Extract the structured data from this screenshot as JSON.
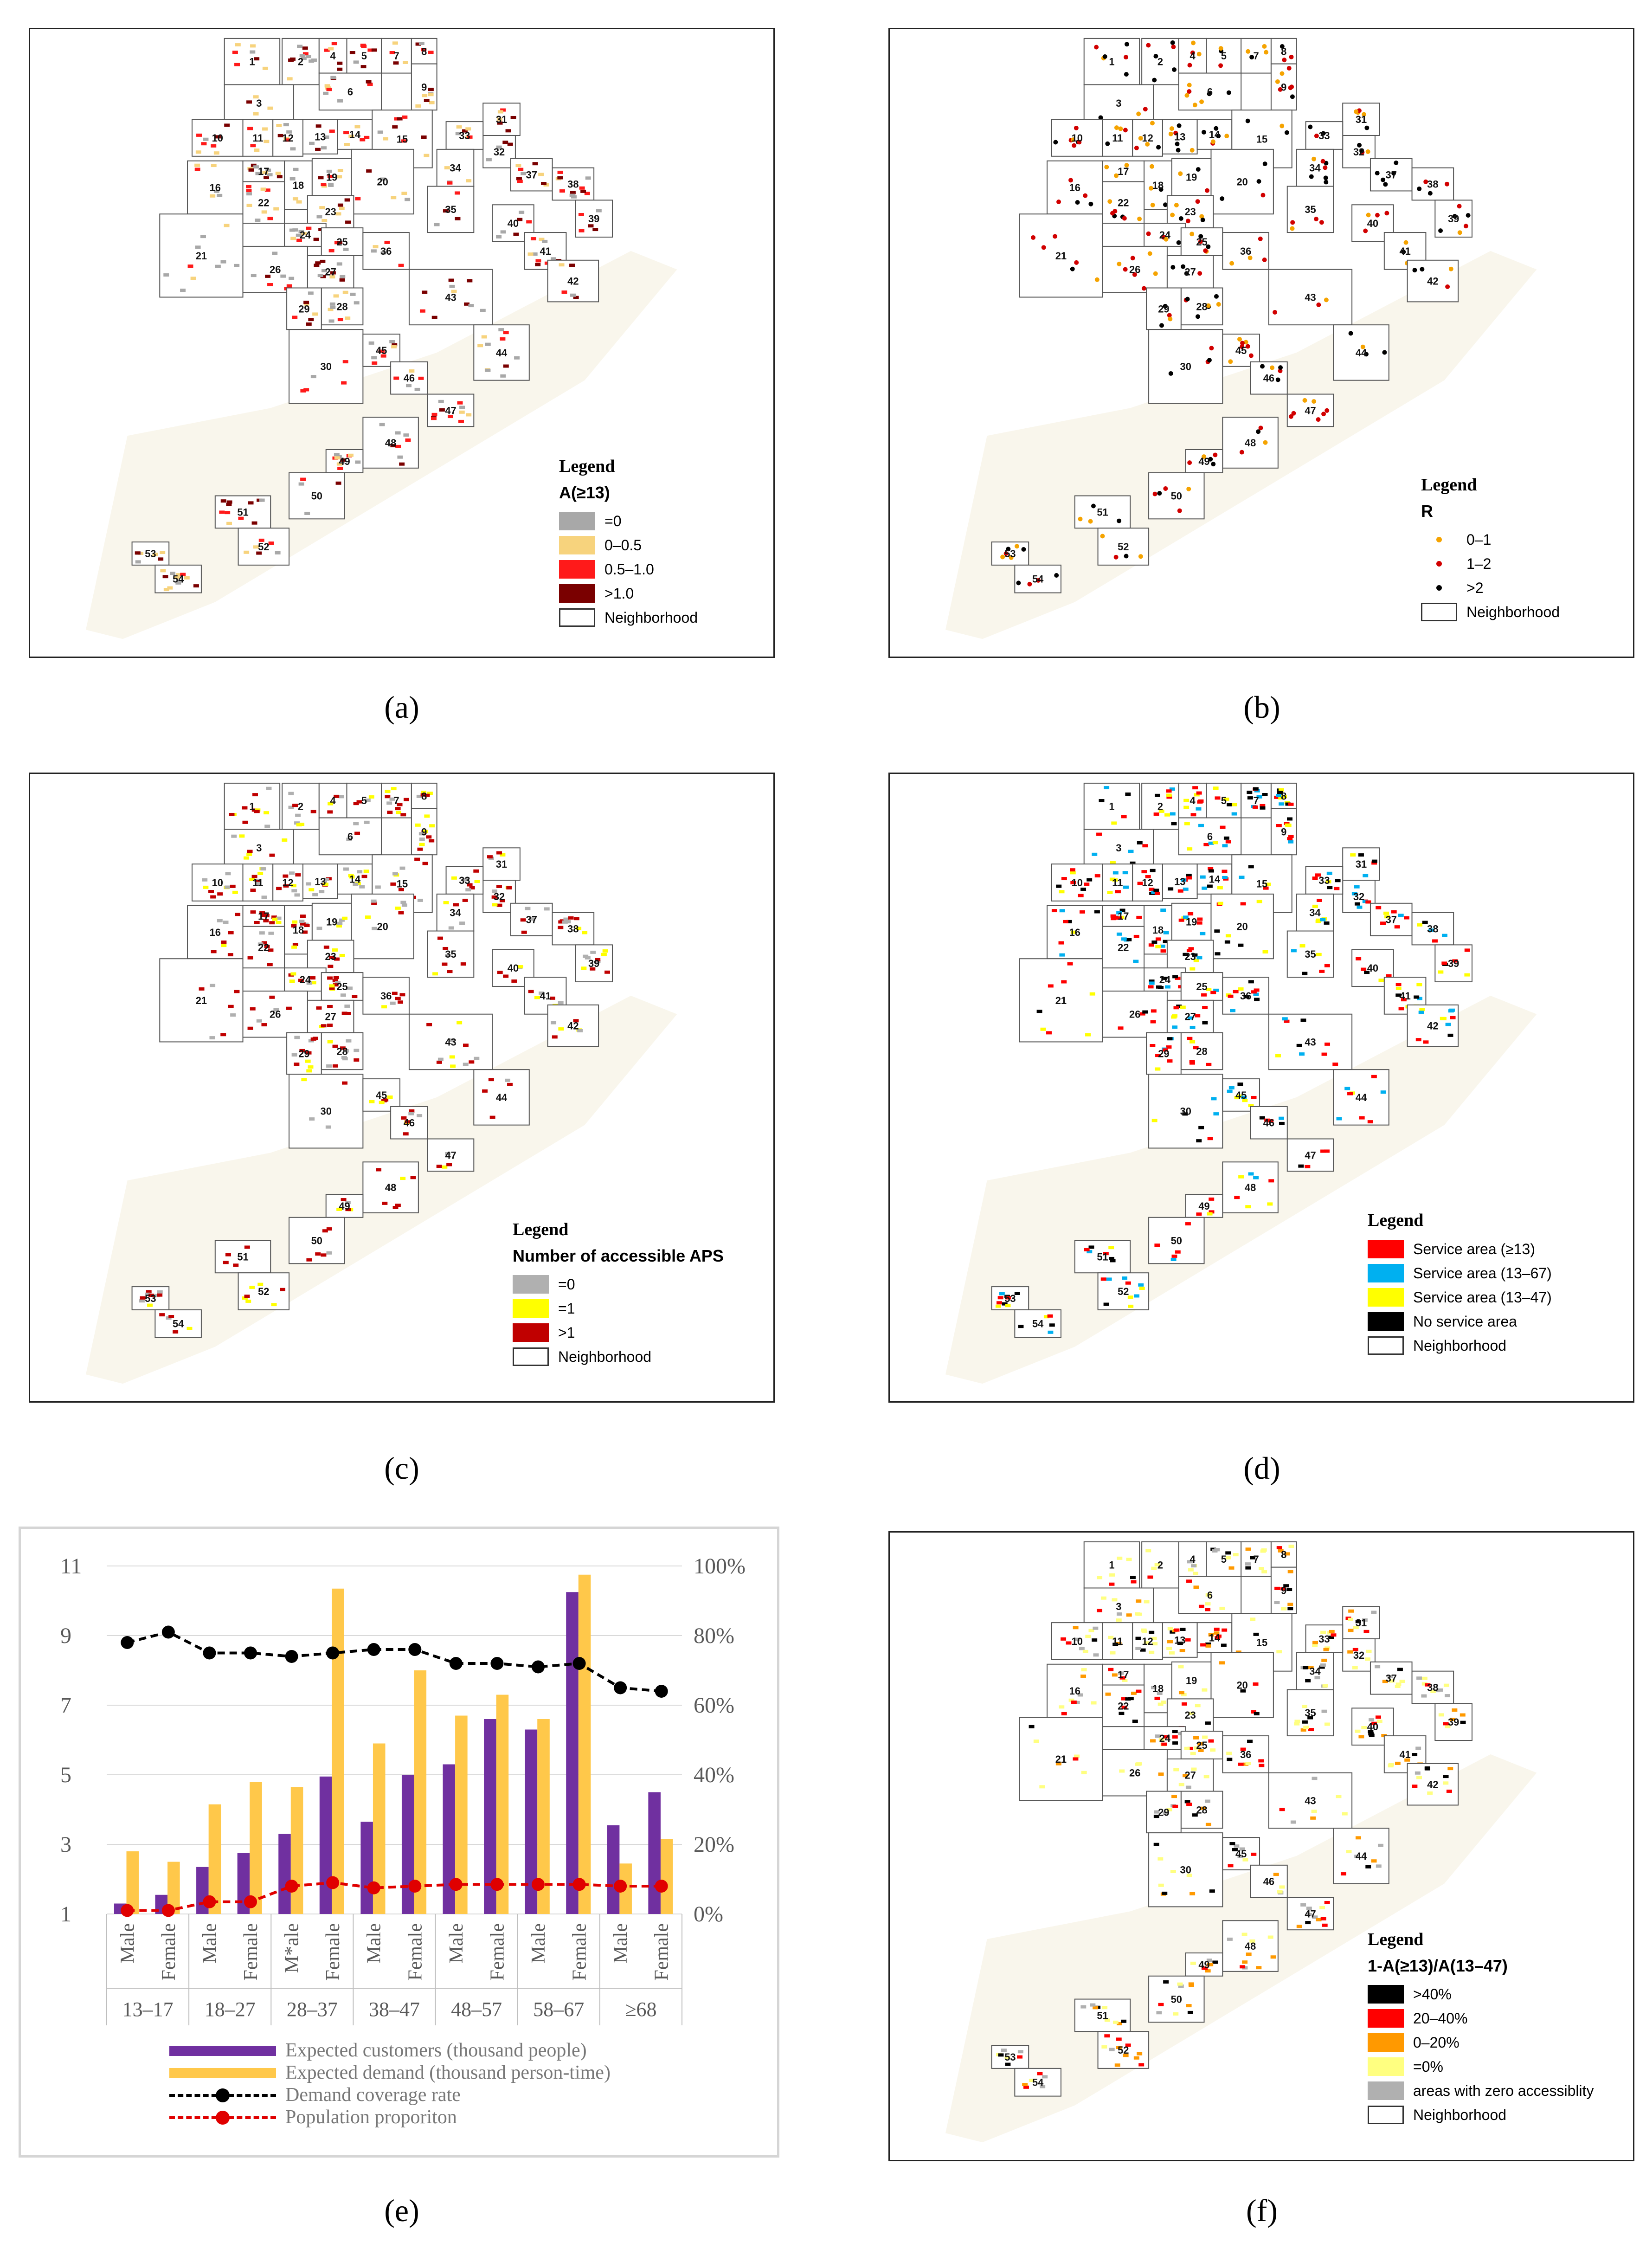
{
  "captions": [
    "(a)",
    "(b)",
    "(c)",
    "(d)",
    "(e)",
    "(f)"
  ],
  "panels": [
    {
      "legend_title": "Legend",
      "legend_subtitle": "A(≥13)",
      "legend_items": [
        {
          "label": "=0",
          "color": "#a8a8a8"
        },
        {
          "label": "0–0.5",
          "color": "#f7d37d"
        },
        {
          "label": "0.5–1.0",
          "color": "#ff1a1a"
        },
        {
          "label": ">1.0",
          "color": "#7a0000"
        },
        {
          "label": "Neighborhood",
          "color": "#ffffff"
        }
      ]
    },
    {
      "legend_title": "Legend",
      "legend_subtitle": "R",
      "legend_items": [
        {
          "label": "0–1",
          "color": "#f5a300"
        },
        {
          "label": "1–2",
          "color": "#d10000"
        },
        {
          "label": ">2",
          "color": "#000000"
        },
        {
          "label": "Neighborhood",
          "color": "#ffffff"
        }
      ]
    },
    {
      "legend_title": "Legend",
      "legend_subtitle": "Number of accessible APS",
      "legend_items": [
        {
          "label": "=0",
          "color": "#b0b0b0"
        },
        {
          "label": "=1",
          "color": "#ffff00"
        },
        {
          "label": ">1",
          "color": "#c00000"
        },
        {
          "label": "Neighborhood",
          "color": "#ffffff"
        }
      ]
    },
    {
      "legend_title": "Legend",
      "legend_subtitle": "",
      "legend_items": [
        {
          "label": "Service area (≥13)",
          "color": "#ff0000"
        },
        {
          "label": "Service area (13–67)",
          "color": "#00b0f0"
        },
        {
          "label": "Service area (13–47)",
          "color": "#ffff00"
        },
        {
          "label": "No service area",
          "color": "#000000"
        },
        {
          "label": "Neighborhood",
          "color": "#ffffff"
        }
      ]
    },
    {
      "legend_title": "Legend",
      "legend_subtitle": "1-A(≥13)/A(13–47)",
      "legend_items": [
        {
          "label": ">40%",
          "color": "#000000"
        },
        {
          "label": "20–40%",
          "color": "#ff0000"
        },
        {
          "label": "0–20%",
          "color": "#ff9900"
        },
        {
          "label": "=0%",
          "color": "#ffff80"
        },
        {
          "label": "areas with zero accessiblity",
          "color": "#b0b0b0"
        },
        {
          "label": "Neighborhood",
          "color": "#ffffff"
        }
      ]
    }
  ],
  "neighborhood_ids": [
    "1",
    "2",
    "3",
    "4",
    "5",
    "6",
    "7",
    "8",
    "9",
    "10",
    "11",
    "12",
    "13",
    "14",
    "15",
    "16",
    "17",
    "18",
    "19",
    "20",
    "21",
    "22",
    "23",
    "24",
    "25",
    "26",
    "27",
    "28",
    "29",
    "30",
    "31",
    "32",
    "33",
    "34",
    "35",
    "36",
    "37",
    "38",
    "39",
    "40",
    "41",
    "42",
    "43",
    "44",
    "45",
    "46",
    "47",
    "48",
    "49",
    "50",
    "51",
    "52",
    "53",
    "54"
  ],
  "chart_data": {
    "type": "bar",
    "categories": [
      "Male",
      "Female",
      "Male",
      "Female",
      "M*ale",
      "Female",
      "Male",
      "Female",
      "Male",
      "Female",
      "Male",
      "Female",
      "Male",
      "Female"
    ],
    "age_groups": [
      "13–17",
      "18–27",
      "28–37",
      "38–47",
      "48–57",
      "58–67",
      "≥68"
    ],
    "left_axis_ticks": [
      "1",
      "3",
      "5",
      "7",
      "9",
      "11"
    ],
    "right_axis_ticks": [
      "0%",
      "20%",
      "40%",
      "60%",
      "80%",
      "100%"
    ],
    "ylim_left": [
      1,
      11
    ],
    "ylim_right": [
      0,
      100
    ],
    "series": [
      {
        "name": "Expected customers (thousand people)",
        "type": "bar",
        "color": "#7030a0",
        "values": [
          1.3,
          1.55,
          2.35,
          2.75,
          3.3,
          4.95,
          3.65,
          5.0,
          5.3,
          6.6,
          6.3,
          10.25,
          3.55,
          4.5
        ]
      },
      {
        "name": "Expected demand (thousand person-time)",
        "type": "bar",
        "color": "#ffc84a",
        "values": [
          2.8,
          2.5,
          4.15,
          4.8,
          4.65,
          10.35,
          5.9,
          8.0,
          6.7,
          7.3,
          6.6,
          10.75,
          2.45,
          3.15
        ]
      },
      {
        "name": "Demand coverage rate",
        "type": "line",
        "color": "#000000",
        "axis": "right",
        "values": [
          78,
          81,
          75,
          75,
          74,
          75,
          76,
          76,
          72,
          72,
          71,
          72,
          65,
          64
        ]
      },
      {
        "name": "Population proporiton",
        "type": "line",
        "color": "#e00000",
        "axis": "right",
        "values": [
          1,
          1,
          3.5,
          3.5,
          8,
          9,
          7.5,
          8,
          8.5,
          8.5,
          8.5,
          8.5,
          8,
          8
        ]
      }
    ]
  }
}
